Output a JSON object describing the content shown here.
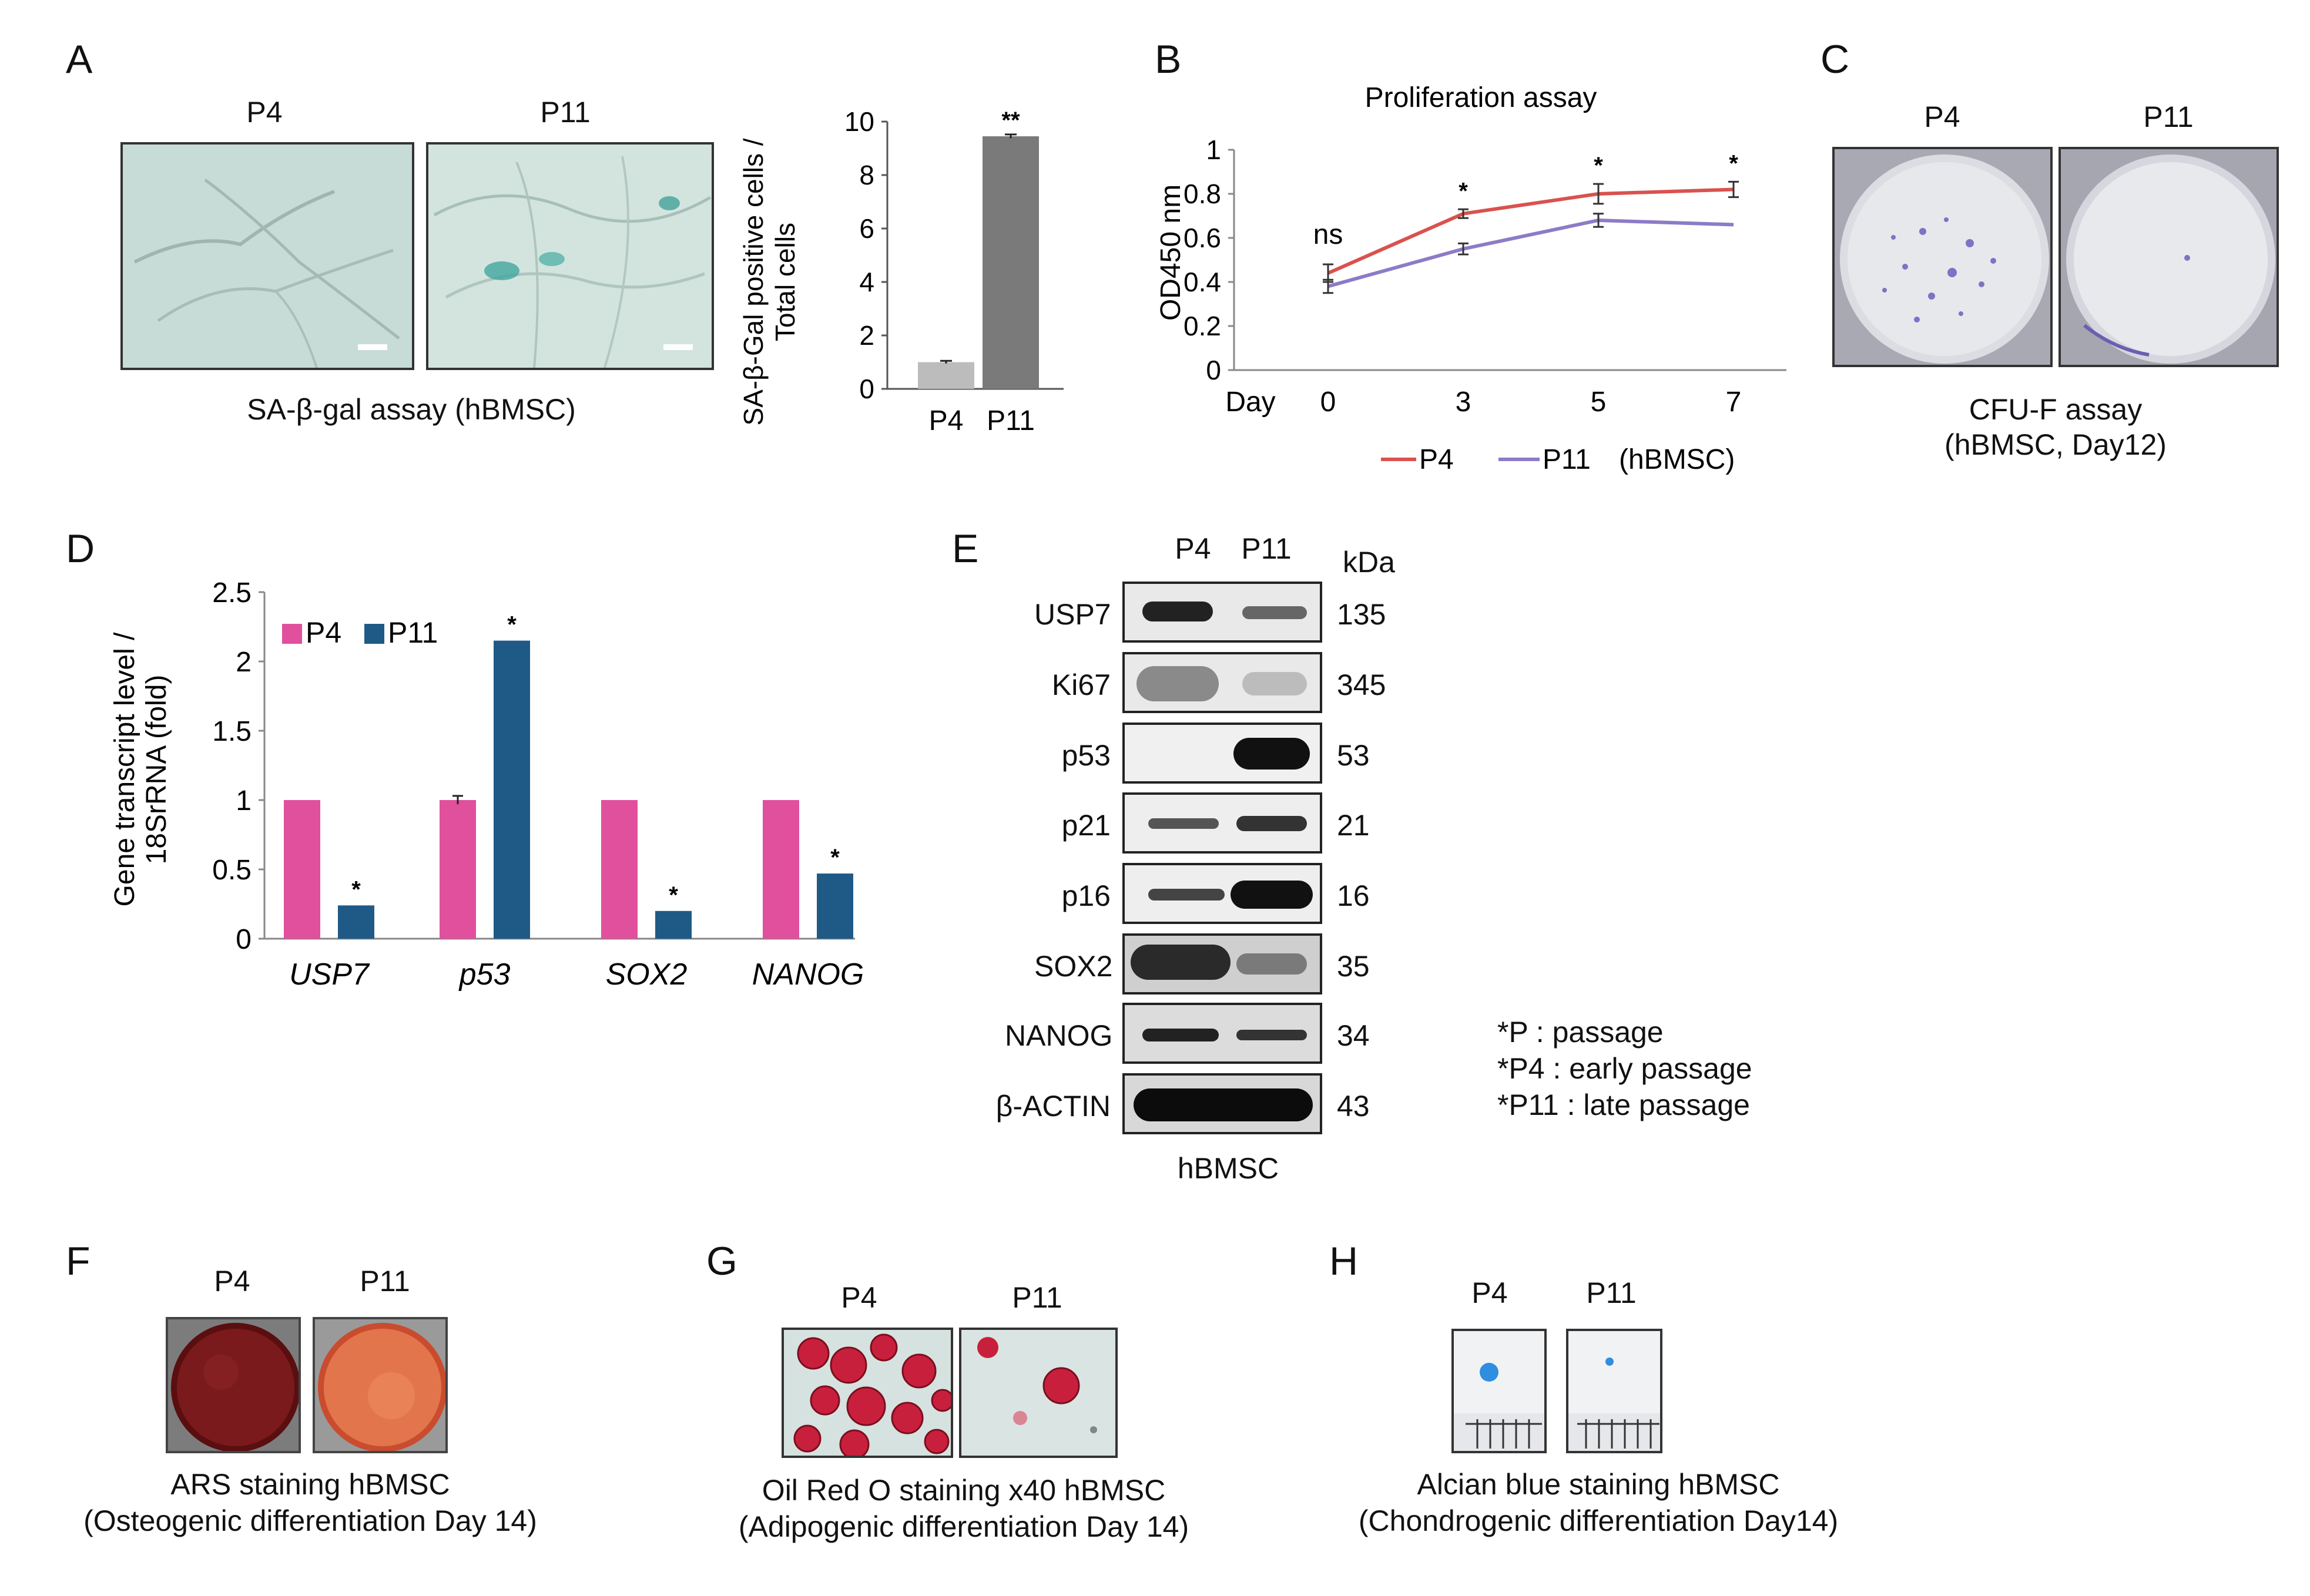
{
  "panels": {
    "A": {
      "label": "A",
      "img_titles": [
        "P4",
        "P11"
      ],
      "caption": "SA-β-gal assay (hBMSC)"
    },
    "B": {
      "label": "B"
    },
    "C": {
      "label": "C",
      "img_titles": [
        "P4",
        "P11"
      ],
      "caption_line1": "CFU-F assay",
      "caption_line2": "(hBMSC, Day12)"
    },
    "D": {
      "label": "D"
    },
    "E": {
      "label": "E",
      "lane_labels": [
        "P4",
        "P11"
      ],
      "kda_header": "kDa",
      "rows": [
        {
          "protein": "USP7",
          "kda": "135"
        },
        {
          "protein": "Ki67",
          "kda": "345"
        },
        {
          "protein": "p53",
          "kda": "53"
        },
        {
          "protein": "p21",
          "kda": "21"
        },
        {
          "protein": "p16",
          "kda": "16"
        },
        {
          "protein": "SOX2",
          "kda": "35"
        },
        {
          "protein": "NANOG",
          "kda": "34"
        },
        {
          "protein": "β-ACTIN",
          "kda": "43"
        }
      ],
      "caption": "hBMSC",
      "notes": [
        "*P : passage",
        "*P4 : early passage",
        "*P11 : late passage"
      ]
    },
    "F": {
      "label": "F",
      "img_titles": [
        "P4",
        "P11"
      ],
      "caption_line1": "ARS staining hBMSC",
      "caption_line2": "(Osteogenic differentiation Day 14)"
    },
    "G": {
      "label": "G",
      "img_titles": [
        "P4",
        "P11"
      ],
      "caption_line1": "Oil Red O staining x40 hBMSC",
      "caption_line2": "(Adipogenic differentiation Day 14)"
    },
    "H": {
      "label": "H",
      "img_titles": [
        "P4",
        "P11"
      ],
      "caption_line1": "Alcian blue staining hBMSC",
      "caption_line2": "(Chondrogenic differentiation Day14)"
    }
  },
  "chart_data": [
    {
      "id": "A-bar",
      "type": "bar",
      "categories": [
        "P4",
        "P11"
      ],
      "values": [
        1.0,
        9.45
      ],
      "errors": [
        0.05,
        0.07
      ],
      "significance": [
        "",
        "**"
      ],
      "ylabel": "SA-β-Gal positive cells / Total cells",
      "ylabel_line1": "SA-β-Gal positive cells /",
      "ylabel_line2": "Total cells",
      "ylim": [
        0,
        10
      ],
      "yticks": [
        "0",
        "2",
        "4",
        "6",
        "8",
        "10"
      ],
      "colors": [
        "#bcbcbc",
        "#7a7a7a"
      ]
    },
    {
      "id": "B-line",
      "type": "line",
      "title": "Proliferation assay",
      "x": [
        0,
        3,
        5,
        7
      ],
      "xlabel": "Day",
      "xtick_labels": [
        "0",
        "3",
        "5",
        "7"
      ],
      "ylabel": "OD450 nm",
      "ylim": [
        0,
        1
      ],
      "yticks": [
        "0",
        "0.2",
        "0.4",
        "0.6",
        "0.8",
        "1"
      ],
      "series": [
        {
          "name": "P4",
          "values": [
            0.44,
            0.71,
            0.8,
            0.82
          ],
          "errors": [
            0.04,
            0.02,
            0.045,
            0.035
          ],
          "color": "#d9524e"
        },
        {
          "name": "P11",
          "values": [
            0.38,
            0.55,
            0.68,
            0.66
          ],
          "errors": [
            0.03,
            0.025,
            0.03,
            0.0
          ],
          "color": "#8c7bc6"
        }
      ],
      "annotations": [
        "ns",
        "*",
        "*",
        "*"
      ],
      "legend_suffix": "(hBMSC)"
    },
    {
      "id": "D-bar",
      "type": "bar",
      "categories": [
        "USP7",
        "p53",
        "SOX2",
        "NANOG"
      ],
      "series": [
        {
          "name": "P4",
          "values": [
            1.0,
            1.0,
            1.0,
            1.0
          ],
          "errors": [
            0.0,
            0.03,
            0.0,
            0.0
          ],
          "color": "#e0509d"
        },
        {
          "name": "P11",
          "values": [
            0.24,
            2.15,
            0.2,
            0.47
          ],
          "errors": [
            0.0,
            0.0,
            0.0,
            0.0
          ],
          "color": "#1f5a86"
        }
      ],
      "significance": [
        "*",
        "*",
        "*",
        "*"
      ],
      "ylabel": "Gene transcript level / 18SrRNA (fold)",
      "ylabel_line1": "Gene transcript level /",
      "ylabel_line2": "18SrRNA (fold)",
      "ylim": [
        0,
        2.5
      ],
      "yticks": [
        "0",
        "0.5",
        "1",
        "1.5",
        "2",
        "2.5"
      ]
    }
  ]
}
